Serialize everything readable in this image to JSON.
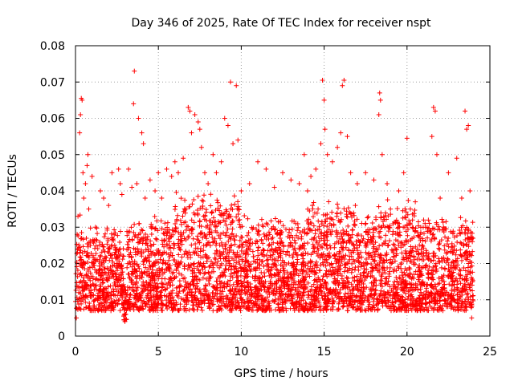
{
  "chart_data": {
    "type": "scatter",
    "title": "Day 346 of 2025, Rate Of TEC Index for receiver nspt",
    "xlabel": "GPS time / hours",
    "ylabel": "ROTI / TECUs",
    "xlim": [
      0,
      25
    ],
    "ylim": [
      0,
      0.08
    ],
    "x_ticks": [
      "0",
      "5",
      "10",
      "15",
      "20",
      "25"
    ],
    "y_ticks": [
      "0",
      "0.01",
      "0.02",
      "0.03",
      "0.04",
      "0.05",
      "0.06",
      "0.07",
      "0.08"
    ],
    "grid": true,
    "marker": "+",
    "series": [
      {
        "color": "#ff0000",
        "points": [
          [
            0.05,
            0.005
          ],
          [
            0.1,
            0.028
          ],
          [
            0.15,
            0.033
          ],
          [
            0.2,
            0.012
          ],
          [
            0.25,
            0.056
          ],
          [
            0.3,
            0.061
          ],
          [
            0.35,
            0.0655
          ],
          [
            0.4,
            0.065
          ],
          [
            0.45,
            0.045
          ],
          [
            0.5,
            0.038
          ],
          [
            0.55,
            0.02
          ],
          [
            0.6,
            0.042
          ],
          [
            0.7,
            0.047
          ],
          [
            0.75,
            0.05
          ],
          [
            0.8,
            0.035
          ],
          [
            0.9,
            0.025
          ],
          [
            1.0,
            0.044
          ],
          [
            1.2,
            0.03
          ],
          [
            1.5,
            0.04
          ],
          [
            1.5,
            0.008
          ],
          [
            1.7,
            0.038
          ],
          [
            2.0,
            0.036
          ],
          [
            2.2,
            0.045
          ],
          [
            2.5,
            0.02
          ],
          [
            2.6,
            0.046
          ],
          [
            2.7,
            0.042
          ],
          [
            2.8,
            0.039
          ],
          [
            2.9,
            0.022
          ],
          [
            3.0,
            0.0045
          ],
          [
            3.2,
            0.046
          ],
          [
            3.4,
            0.041
          ],
          [
            3.5,
            0.064
          ],
          [
            3.55,
            0.073
          ],
          [
            3.7,
            0.042
          ],
          [
            3.8,
            0.06
          ],
          [
            4.0,
            0.056
          ],
          [
            4.1,
            0.053
          ],
          [
            4.2,
            0.038
          ],
          [
            4.5,
            0.043
          ],
          [
            4.8,
            0.04
          ],
          [
            5.0,
            0.045
          ],
          [
            5.2,
            0.038
          ],
          [
            5.5,
            0.046
          ],
          [
            5.8,
            0.044
          ],
          [
            6.0,
            0.048
          ],
          [
            6.2,
            0.045
          ],
          [
            6.5,
            0.049
          ],
          [
            6.8,
            0.063
          ],
          [
            6.9,
            0.062
          ],
          [
            7.0,
            0.056
          ],
          [
            7.2,
            0.061
          ],
          [
            7.4,
            0.059
          ],
          [
            7.5,
            0.057
          ],
          [
            7.6,
            0.052
          ],
          [
            7.8,
            0.045
          ],
          [
            8.0,
            0.042
          ],
          [
            8.3,
            0.05
          ],
          [
            8.5,
            0.045
          ],
          [
            8.8,
            0.048
          ],
          [
            9.0,
            0.06
          ],
          [
            9.2,
            0.058
          ],
          [
            9.35,
            0.07
          ],
          [
            9.5,
            0.053
          ],
          [
            9.7,
            0.069
          ],
          [
            9.8,
            0.054
          ],
          [
            10.0,
            0.04
          ],
          [
            10.5,
            0.042
          ],
          [
            11.0,
            0.048
          ],
          [
            11.5,
            0.046
          ],
          [
            12.0,
            0.041
          ],
          [
            12.5,
            0.045
          ],
          [
            13.0,
            0.043
          ],
          [
            13.5,
            0.042
          ],
          [
            13.8,
            0.05
          ],
          [
            14.0,
            0.04
          ],
          [
            14.2,
            0.044
          ],
          [
            14.5,
            0.046
          ],
          [
            14.8,
            0.053
          ],
          [
            14.9,
            0.0705
          ],
          [
            15.0,
            0.065
          ],
          [
            15.05,
            0.057
          ],
          [
            15.2,
            0.05
          ],
          [
            15.5,
            0.048
          ],
          [
            15.8,
            0.052
          ],
          [
            16.0,
            0.056
          ],
          [
            16.1,
            0.069
          ],
          [
            16.2,
            0.0705
          ],
          [
            16.4,
            0.055
          ],
          [
            16.6,
            0.045
          ],
          [
            17.0,
            0.042
          ],
          [
            17.5,
            0.045
          ],
          [
            18.0,
            0.043
          ],
          [
            18.3,
            0.061
          ],
          [
            18.35,
            0.067
          ],
          [
            18.4,
            0.065
          ],
          [
            18.5,
            0.05
          ],
          [
            18.8,
            0.042
          ],
          [
            19.0,
            0.035
          ],
          [
            19.5,
            0.04
          ],
          [
            19.8,
            0.045
          ],
          [
            20.0,
            0.0545
          ],
          [
            20.2,
            0.035
          ],
          [
            20.5,
            0.037
          ],
          [
            21.0,
            0.032
          ],
          [
            21.5,
            0.055
          ],
          [
            21.6,
            0.063
          ],
          [
            21.7,
            0.062
          ],
          [
            21.8,
            0.05
          ],
          [
            22.0,
            0.038
          ],
          [
            22.2,
            0.03
          ],
          [
            22.5,
            0.045
          ],
          [
            23.0,
            0.049
          ],
          [
            23.3,
            0.038
          ],
          [
            23.5,
            0.062
          ],
          [
            23.6,
            0.057
          ],
          [
            23.7,
            0.058
          ],
          [
            23.8,
            0.04
          ],
          [
            23.9,
            0.005
          ]
        ]
      }
    ]
  }
}
